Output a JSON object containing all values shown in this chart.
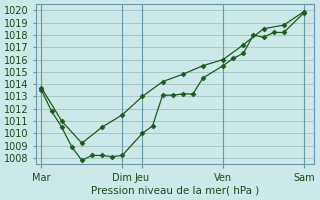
{
  "title": "Pression niveau de la mer( hPa )",
  "bg_color": "#cce8e8",
  "grid_color": "#99bbbb",
  "line_color": "#1a5c1a",
  "marker_color": "#1a5c1a",
  "ylim": [
    1007.5,
    1020.5
  ],
  "yticks": [
    1008,
    1009,
    1010,
    1011,
    1012,
    1013,
    1014,
    1015,
    1016,
    1017,
    1018,
    1019,
    1020
  ],
  "xtick_labels": [
    "Mar",
    "Dim",
    "Jeu",
    "Ven",
    "Sam"
  ],
  "xtick_positions": [
    0,
    8,
    10,
    18,
    26
  ],
  "vline_positions": [
    0,
    8,
    10,
    18,
    26
  ],
  "xlim": [
    -0.5,
    27
  ],
  "series1_x": [
    0,
    1,
    2,
    3,
    4,
    5,
    6,
    7,
    8,
    10,
    11,
    12,
    13,
    14,
    15,
    16,
    18,
    19,
    20,
    21,
    22,
    23,
    24,
    26
  ],
  "series1_y": [
    1013.5,
    1011.8,
    1010.5,
    1008.9,
    1007.8,
    1008.2,
    1008.2,
    1008.1,
    1008.2,
    1010.0,
    1010.6,
    1013.1,
    1013.1,
    1013.2,
    1013.2,
    1014.5,
    1015.5,
    1016.1,
    1016.5,
    1018.0,
    1017.8,
    1018.2,
    1018.2,
    1019.8
  ],
  "series2_x": [
    0,
    2,
    4,
    6,
    8,
    10,
    12,
    14,
    16,
    18,
    20,
    22,
    24,
    26
  ],
  "series2_y": [
    1013.7,
    1011.0,
    1009.2,
    1010.5,
    1011.5,
    1013.0,
    1014.2,
    1014.8,
    1015.5,
    1016.0,
    1017.2,
    1018.5,
    1018.8,
    1019.9
  ]
}
